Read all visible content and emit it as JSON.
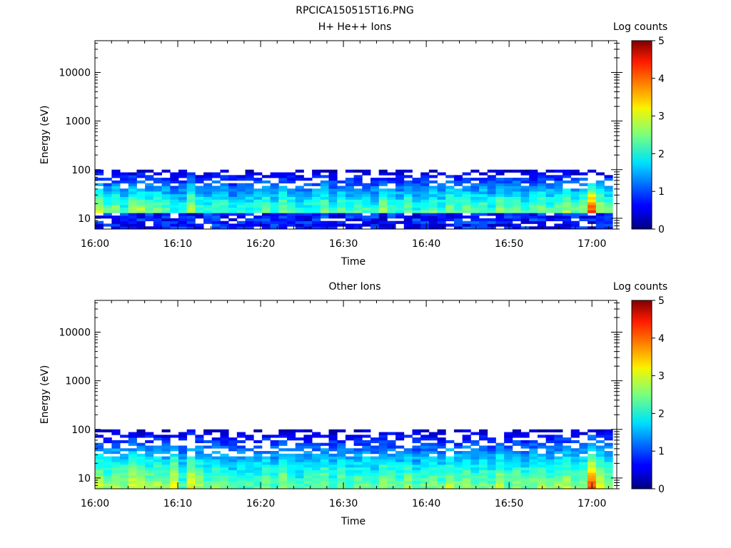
{
  "figure": {
    "title": "RPCICA150515T16.PNG"
  },
  "chart_data": [
    {
      "type": "heatmap",
      "title": "H+ He++ Ions",
      "xlabel": "Time",
      "ylabel": "Energy (eV)",
      "x_start": "16:00",
      "x_end": "17:03",
      "xticks": [
        "16:00",
        "16:10",
        "16:20",
        "16:30",
        "16:40",
        "16:50",
        "17:00"
      ],
      "yscale": "log",
      "ylim": [
        6,
        45000
      ],
      "yticks": [
        10,
        100,
        1000,
        10000
      ],
      "ytick_labels": [
        "10",
        "100",
        "1000",
        "10000"
      ],
      "colorbar_label": "Log counts",
      "colorbar_range": [
        0,
        5
      ],
      "colorbar_ticks": [
        "0",
        "1",
        "2",
        "3",
        "4",
        "5"
      ],
      "energy_range_eV": [
        6,
        100
      ],
      "columns": 62,
      "column_peak_log_counts": [
        2.9,
        2.3,
        2.6,
        2.1,
        2.7,
        2.8,
        2.4,
        2.5,
        2.3,
        1.9,
        2.0,
        2.9,
        2.2,
        2.0,
        2.4,
        2.3,
        1.8,
        2.1,
        2.1,
        2.2,
        2.4,
        2.0,
        2.6,
        2.3,
        1.9,
        2.1,
        2.2,
        2.5,
        2.0,
        2.4,
        2.1,
        2.3,
        2.2,
        2.0,
        2.6,
        2.3,
        2.1,
        2.5,
        2.0,
        2.2,
        2.4,
        2.1,
        2.6,
        2.3,
        2.5,
        2.2,
        2.4,
        2.1,
        2.7,
        2.3,
        2.5,
        2.2,
        2.4,
        2.6,
        2.3,
        2.5,
        2.7,
        2.4,
        2.6,
        4.0,
        2.8,
        2.5
      ]
    },
    {
      "type": "heatmap",
      "title": "Other Ions",
      "xlabel": "Time",
      "ylabel": "Energy (eV)",
      "x_start": "16:00",
      "x_end": "17:03",
      "xticks": [
        "16:00",
        "16:10",
        "16:20",
        "16:30",
        "16:40",
        "16:50",
        "17:00"
      ],
      "yscale": "log",
      "ylim": [
        6,
        45000
      ],
      "yticks": [
        10,
        100,
        1000,
        10000
      ],
      "ytick_labels": [
        "10",
        "100",
        "1000",
        "10000"
      ],
      "colorbar_label": "Log counts",
      "colorbar_range": [
        0,
        5
      ],
      "colorbar_ticks": [
        "0",
        "1",
        "2",
        "3",
        "4",
        "5"
      ],
      "energy_range_eV": [
        6,
        100
      ],
      "columns": 62,
      "column_peak_log_counts": [
        2.8,
        2.5,
        2.7,
        2.6,
        2.9,
        2.8,
        2.6,
        2.7,
        2.4,
        3.2,
        2.2,
        3.1,
        2.6,
        2.3,
        2.5,
        2.4,
        2.1,
        2.3,
        2.2,
        2.3,
        2.5,
        2.2,
        2.7,
        2.4,
        2.1,
        2.3,
        2.4,
        2.6,
        2.2,
        2.5,
        2.3,
        2.4,
        2.5,
        2.2,
        2.7,
        2.4,
        2.3,
        2.6,
        2.2,
        2.4,
        2.5,
        2.3,
        2.7,
        2.4,
        2.6,
        2.3,
        2.5,
        2.3,
        2.8,
        2.4,
        2.6,
        2.3,
        2.5,
        2.7,
        2.4,
        2.6,
        2.8,
        2.5,
        2.7,
        3.9,
        2.9,
        2.6
      ]
    }
  ]
}
